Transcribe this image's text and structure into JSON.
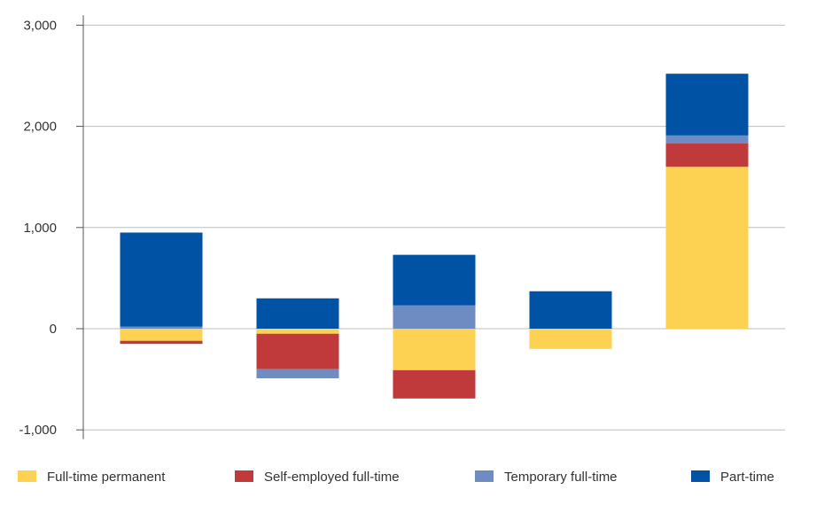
{
  "chart_data": {
    "type": "bar",
    "stacked": true,
    "title": "",
    "xlabel": "",
    "ylabel": "",
    "ylim": [
      -1100,
      3150
    ],
    "yticks": [
      -1000,
      0,
      1000,
      2000,
      3000
    ],
    "ytick_labels": [
      "-1,000",
      "0",
      "1,000",
      "2,000",
      "3,000"
    ],
    "categories": [
      "",
      "",
      "",
      "",
      ""
    ],
    "grid": true,
    "legend_position": "bottom",
    "series": [
      {
        "name": "Full-time permanent",
        "color": "#FDD152",
        "values": [
          -120,
          -50,
          -410,
          -200,
          1600
        ]
      },
      {
        "name": "Self-employed full-time",
        "color": "#C0393B",
        "values": [
          -30,
          -350,
          -280,
          0,
          230
        ]
      },
      {
        "name": "Temporary full-time",
        "color": "#6E8CC2",
        "values": [
          20,
          -90,
          230,
          0,
          80
        ]
      },
      {
        "name": "Part-time",
        "color": "#0052A5",
        "values": [
          930,
          300,
          500,
          370,
          610
        ]
      }
    ]
  }
}
